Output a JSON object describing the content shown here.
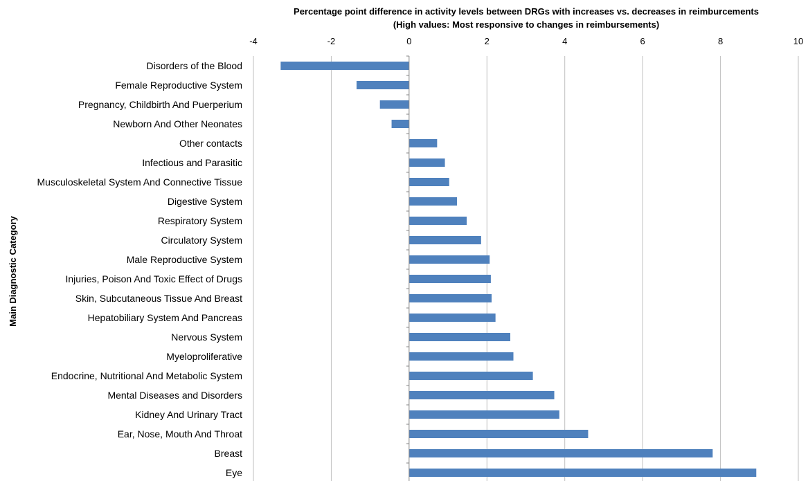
{
  "chart_data": {
    "type": "bar",
    "orientation": "horizontal",
    "title": "Percentage point difference in activity levels between DRGs with increases vs. decreases in reimburcements",
    "subtitle": "(High values: Most responsive to changes in reimbursements)",
    "xlabel": "",
    "ylabel": "Main Diagnostic Category",
    "xlim": [
      -4,
      10
    ],
    "xticks": [
      -4,
      -2,
      0,
      2,
      4,
      6,
      8,
      10
    ],
    "x_axis_position": "top",
    "grid": true,
    "bar_color": "#4f81bd",
    "categories": [
      "Disorders of the Blood",
      "Female Reproductive System",
      "Pregnancy, Childbirth And Puerperium",
      "Newborn And Other Neonates",
      "Other contacts",
      "Infectious and Parasitic",
      "Musculoskeletal System And Connective Tissue",
      "Digestive System",
      "Respiratory System",
      "Circulatory System",
      "Male Reproductive System",
      "Injuries, Poison And Toxic Effect of Drugs",
      "Skin, Subcutaneous Tissue And Breast",
      "Hepatobiliary System And Pancreas",
      "Nervous System",
      "Myeloproliferative",
      "Endocrine, Nutritional And Metabolic System",
      "Mental Diseases and Disorders",
      "Kidney And Urinary Tract",
      "Ear, Nose, Mouth And Throat",
      "Breast",
      "Eye"
    ],
    "values": [
      -3.3,
      -1.35,
      -0.75,
      -0.45,
      0.72,
      0.92,
      1.03,
      1.23,
      1.48,
      1.85,
      2.07,
      2.1,
      2.12,
      2.22,
      2.6,
      2.68,
      3.18,
      3.73,
      3.86,
      4.6,
      7.8,
      8.92
    ]
  }
}
